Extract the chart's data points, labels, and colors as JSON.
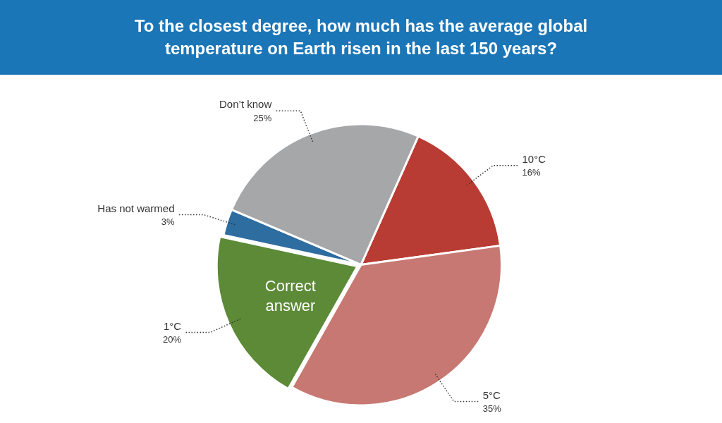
{
  "chart_data": {
    "type": "pie",
    "title": "To the closest degree, how much has the average global temperature on Earth risen in the last 150 years?",
    "categories": [
      "10°C",
      "5°C",
      "1°C",
      "Has not warmed",
      "Don’t know"
    ],
    "values": [
      16,
      35,
      20,
      3,
      25
    ],
    "value_labels": [
      "16%",
      "35%",
      "20%",
      "3%",
      "25%"
    ],
    "colors": [
      "#b83c33",
      "#c77872",
      "#5c8a37",
      "#2e6da0",
      "#a6a7a9"
    ],
    "annotations": [
      {
        "text": "Correct answer",
        "x": "1°C"
      }
    ],
    "legend": false
  }
}
